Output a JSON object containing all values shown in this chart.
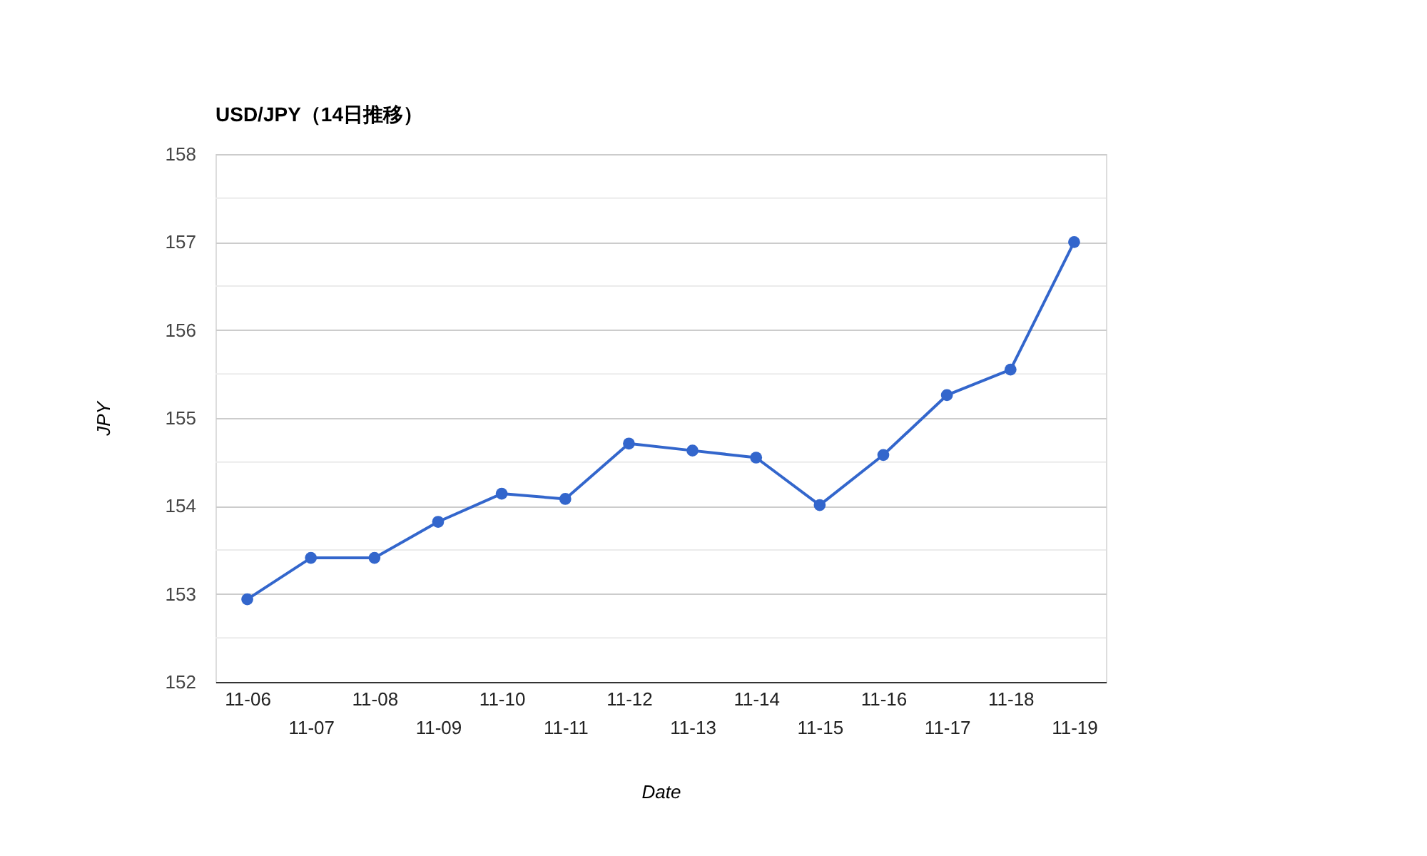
{
  "chart_data": {
    "type": "line",
    "title": "USD/JPY（14日推移）",
    "xlabel": "Date",
    "ylabel": "JPY",
    "categories": [
      "11-06",
      "11-07",
      "11-08",
      "11-09",
      "11-10",
      "11-11",
      "11-12",
      "11-13",
      "11-14",
      "11-15",
      "11-16",
      "11-17",
      "11-18",
      "11-19"
    ],
    "series": [
      {
        "color": "#3366cc",
        "values": [
          152.94,
          153.41,
          153.41,
          153.82,
          154.14,
          154.08,
          154.71,
          154.63,
          154.55,
          154.01,
          154.58,
          155.26,
          155.55,
          157.0
        ]
      }
    ],
    "ylim": [
      152,
      158
    ],
    "yticks": [
      152,
      {
        "value": 152.5,
        "label": null
      },
      153,
      {
        "value": 153.5,
        "label": null
      },
      154,
      {
        "value": 154.5,
        "label": null
      },
      155,
      {
        "value": 155.5,
        "label": null
      },
      156,
      {
        "value": 156.5,
        "label": null
      },
      157,
      {
        "value": 157.5,
        "label": null
      },
      158
    ],
    "grid": "y",
    "legend": false,
    "marker": "circle",
    "line_style": "solid"
  }
}
